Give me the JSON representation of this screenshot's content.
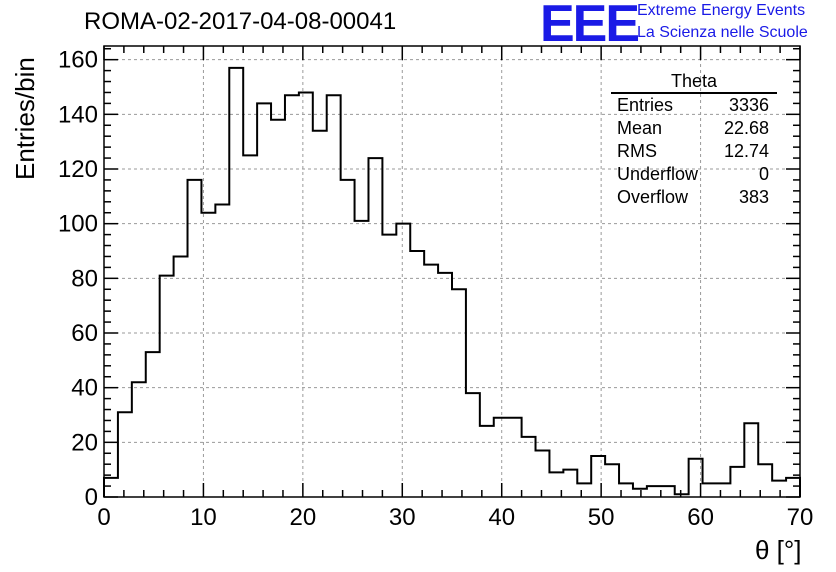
{
  "title": "ROMA-02-2017-04-08-00041",
  "logo": {
    "mark": "EEE",
    "line1": "Extreme Energy Events",
    "line2": "La Scienza nelle Scuole",
    "color": "#1a1ae6"
  },
  "stats": {
    "title": "Theta",
    "rows": [
      {
        "label": "Entries",
        "value": "3336"
      },
      {
        "label": "Mean",
        "value": "22.68"
      },
      {
        "label": "RMS",
        "value": "12.74"
      },
      {
        "label": "Underflow",
        "value": "0"
      },
      {
        "label": "Overflow",
        "value": "383"
      }
    ]
  },
  "chart_data": {
    "type": "bar",
    "style": "step-histogram",
    "xlabel": "θ [°]",
    "ylabel": "Entries/bin",
    "xlim": [
      0,
      70
    ],
    "ylim": [
      0,
      165
    ],
    "bin_width": 1.4,
    "grid": true,
    "x_ticks": [
      0,
      10,
      20,
      30,
      40,
      50,
      60,
      70
    ],
    "y_ticks": [
      0,
      20,
      40,
      60,
      80,
      100,
      120,
      140,
      160
    ],
    "values": [
      7,
      31,
      42,
      53,
      81,
      88,
      116,
      104,
      107,
      157,
      125,
      144,
      138,
      147,
      148,
      134,
      147,
      116,
      101,
      124,
      96,
      100,
      90,
      85,
      82,
      76,
      38,
      26,
      29,
      29,
      22,
      17,
      9,
      10,
      5,
      15,
      12,
      5,
      3,
      4,
      4,
      1,
      14,
      5,
      5,
      11,
      27,
      12,
      6,
      7
    ]
  }
}
